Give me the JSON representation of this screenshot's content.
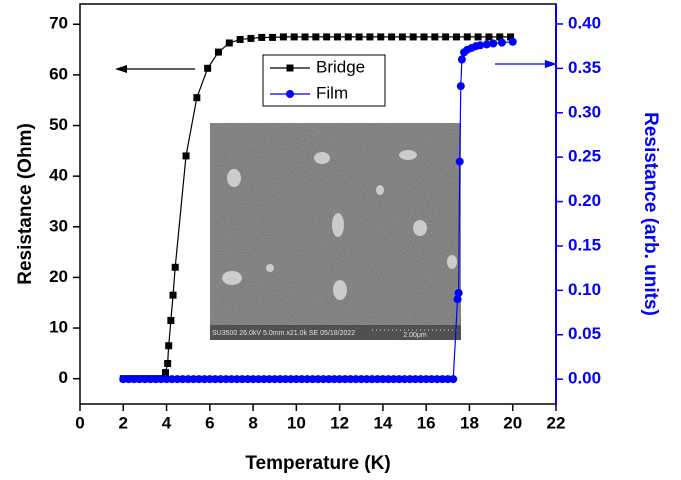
{
  "chart_data": {
    "type": "scatter",
    "x_label": "Temperature (K)",
    "y_label": "Resistance (Ohm)",
    "y2_label": "Resistance (arb. units)",
    "xlim": [
      0,
      22
    ],
    "xticks": [
      0,
      2,
      4,
      6,
      8,
      10,
      12,
      14,
      16,
      18,
      20,
      22
    ],
    "ylim": [
      -5,
      74
    ],
    "yticks": [
      0,
      10,
      20,
      30,
      40,
      50,
      60,
      70
    ],
    "y2lim": [
      -0.028,
      0.4225
    ],
    "y2ticks": [
      {
        "value": 0,
        "label": "0.00"
      },
      {
        "value": 0.05,
        "label": "0.05"
      },
      {
        "value": 0.1,
        "label": "0.10"
      },
      {
        "value": 0.15,
        "label": "0.15"
      },
      {
        "value": 0.2,
        "label": "0.20"
      },
      {
        "value": 0.25,
        "label": "0.25"
      },
      {
        "value": 0.3,
        "label": "0.30"
      },
      {
        "value": 0.35,
        "label": "0.35"
      },
      {
        "value": 0.4,
        "label": "0.40"
      }
    ],
    "legend_position": "top",
    "series": [
      {
        "name": "Bridge",
        "color": "#000000",
        "marker": "square",
        "x": [
          2,
          2.25,
          2.5,
          2.75,
          3,
          3.25,
          3.5,
          3.75,
          3.95,
          4.05,
          4.1,
          4.2,
          4.3,
          4.4,
          4.9,
          5.4,
          5.9,
          6.4,
          6.9,
          7.4,
          7.9,
          8.4,
          8.9,
          9.4,
          9.9,
          10.4,
          10.9,
          11.4,
          11.9,
          12.4,
          12.9,
          13.4,
          13.9,
          14.4,
          14.9,
          15.4,
          15.9,
          16.4,
          16.9,
          17.4,
          17.9,
          18.4,
          18.9,
          19.4,
          19.9
        ],
        "values": [
          0,
          0,
          0,
          0,
          0,
          0,
          0,
          0,
          1.2,
          3,
          6.5,
          11.5,
          16.5,
          22,
          44,
          55.5,
          61.3,
          64.5,
          66.3,
          67,
          67.2,
          67.4,
          67.4,
          67.5,
          67.5,
          67.5,
          67.5,
          67.5,
          67.5,
          67.5,
          67.5,
          67.5,
          67.5,
          67.5,
          67.5,
          67.5,
          67.5,
          67.5,
          67.5,
          67.5,
          67.5,
          67.5,
          67.5,
          67.5,
          67.5
        ]
      },
      {
        "name": "Film",
        "color": "#0000ff",
        "marker": "circle",
        "axis": "y2",
        "x": [
          2,
          2.25,
          2.5,
          2.75,
          3,
          3.25,
          3.5,
          3.75,
          4,
          4.25,
          4.5,
          4.75,
          5,
          5.25,
          5.5,
          5.75,
          6,
          6.25,
          6.5,
          6.75,
          7,
          7.25,
          7.5,
          7.75,
          8,
          8.25,
          8.5,
          8.75,
          9,
          9.25,
          9.5,
          9.75,
          10,
          10.25,
          10.5,
          10.75,
          11,
          11.25,
          11.5,
          11.75,
          12,
          12.25,
          12.5,
          12.75,
          13,
          13.25,
          13.5,
          13.75,
          14,
          14.25,
          14.5,
          14.75,
          15,
          15.25,
          15.5,
          15.75,
          16,
          16.25,
          16.5,
          16.75,
          17,
          17.25,
          17.45,
          17.5,
          17.55,
          17.6,
          17.65,
          17.75,
          17.9,
          18.1,
          18.3,
          18.5,
          18.8,
          19.1,
          19.5,
          20
        ],
        "values": [
          0,
          0,
          0,
          0,
          0,
          0,
          0,
          0,
          0,
          0,
          0,
          0,
          0,
          0,
          0,
          0,
          0,
          0,
          0,
          0,
          0,
          0,
          0,
          0,
          0,
          0,
          0,
          0,
          0,
          0,
          0,
          0,
          0,
          0,
          0,
          0,
          0,
          0,
          0,
          0,
          0,
          0,
          0,
          0,
          0,
          0,
          0,
          0,
          0,
          0,
          0,
          0,
          0,
          0,
          0,
          0,
          0,
          0,
          0,
          0,
          0,
          0,
          0.09,
          0.097,
          0.245,
          0.33,
          0.36,
          0.368,
          0.371,
          0.373,
          0.375,
          0.376,
          0.377,
          0.378,
          0.379,
          0.38
        ]
      }
    ],
    "inset": {
      "caption": "SU3500 26.0kV 5.0mm x21.0k SE 05/18/2022",
      "scale_bar": "2.00μm"
    }
  }
}
